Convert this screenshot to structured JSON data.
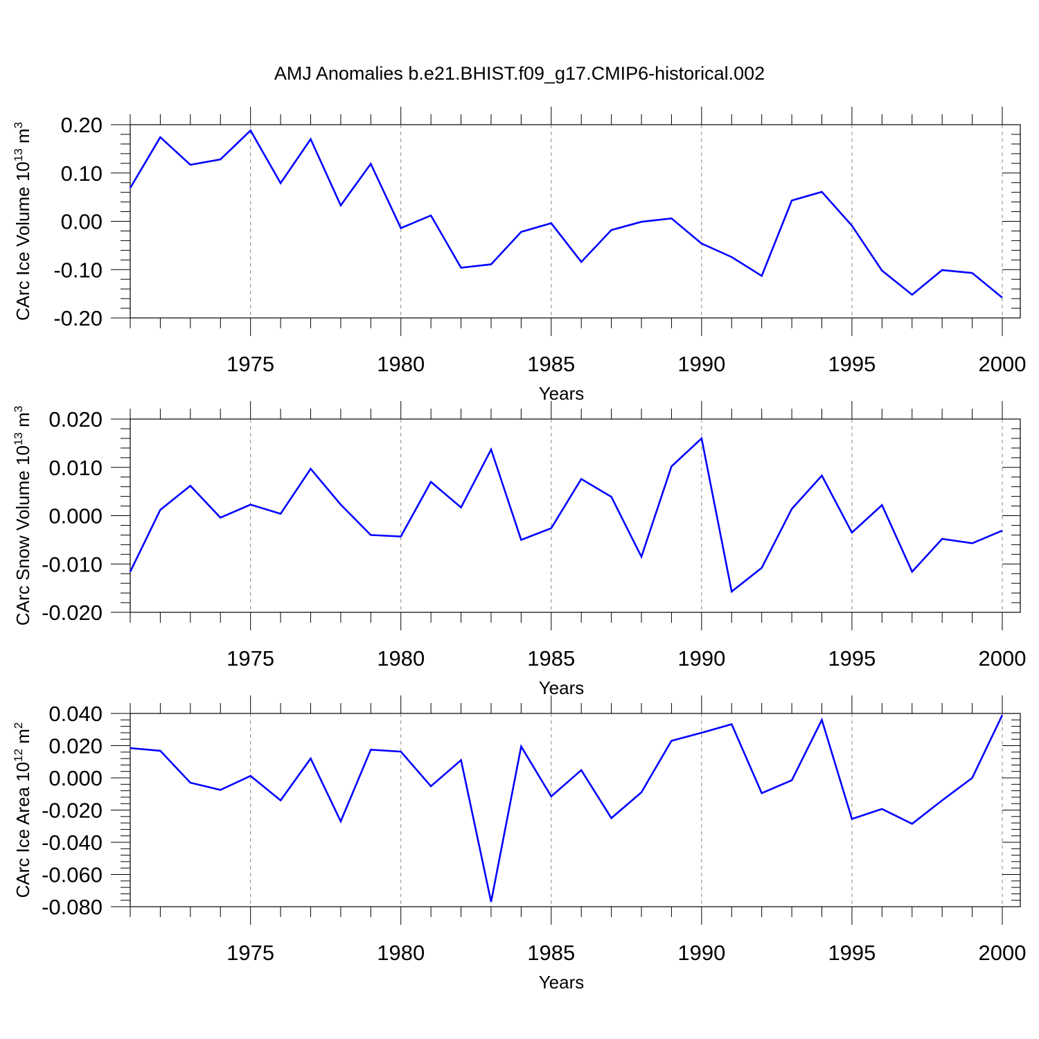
{
  "title": "AMJ Anomalies b.e21.BHIST.f09_g17.CMIP6-historical.002",
  "chart_data": [
    {
      "type": "line",
      "ylabel_main": "CArc Ice Volume 10",
      "ylabel_exp": "13",
      "ylabel_unit": " m",
      "ylabel_unit_exp": "3",
      "xlabel": "Years",
      "xlim": [
        1971,
        2000
      ],
      "ylim": [
        -0.2,
        0.2
      ],
      "yticks": [
        0.2,
        0.1,
        0.0,
        -0.1,
        -0.2
      ],
      "ytick_labels": [
        "0.20",
        "0.10",
        "0.00",
        "-0.10",
        "-0.20"
      ],
      "xticks": [
        1975,
        1980,
        1985,
        1990,
        1995,
        2000
      ],
      "xtick_labels": [
        "1975",
        "1980",
        "1985",
        "1990",
        "1995",
        "2000"
      ],
      "color": "#0000ff",
      "series": [
        {
          "x": [
            1971,
            1972,
            1973,
            1974,
            1975,
            1976,
            1977,
            1978,
            1979,
            1980,
            1981,
            1982,
            1983,
            1984,
            1985,
            1986,
            1987,
            1988,
            1989,
            1990,
            1991,
            1992,
            1993,
            1994,
            1995,
            1996,
            1997,
            1998,
            1999,
            2000
          ],
          "values": [
            0.069,
            0.174,
            0.117,
            0.128,
            0.188,
            0.079,
            0.17,
            0.033,
            0.119,
            -0.014,
            0.012,
            -0.096,
            -0.089,
            -0.022,
            -0.004,
            -0.084,
            -0.018,
            -0.001,
            0.006,
            -0.046,
            -0.074,
            -0.113,
            0.043,
            0.061,
            -0.009,
            -0.102,
            -0.152,
            -0.101,
            -0.107,
            -0.158
          ]
        }
      ]
    },
    {
      "type": "line",
      "ylabel_main": "CArc Snow Volume 10",
      "ylabel_exp": "13",
      "ylabel_unit": " m",
      "ylabel_unit_exp": "3",
      "xlabel": "Years",
      "xlim": [
        1971,
        2000
      ],
      "ylim": [
        -0.02,
        0.02
      ],
      "yticks": [
        0.02,
        0.01,
        0.0,
        -0.01,
        -0.02
      ],
      "ytick_labels": [
        "0.020",
        "0.010",
        "0.000",
        "-0.010",
        "-0.020"
      ],
      "xticks": [
        1975,
        1980,
        1985,
        1990,
        1995,
        2000
      ],
      "xtick_labels": [
        "1975",
        "1980",
        "1985",
        "1990",
        "1995",
        "2000"
      ],
      "color": "#0000ff",
      "series": [
        {
          "x": [
            1971,
            1972,
            1973,
            1974,
            1975,
            1976,
            1977,
            1978,
            1979,
            1980,
            1981,
            1982,
            1983,
            1984,
            1985,
            1986,
            1987,
            1988,
            1989,
            1990,
            1991,
            1992,
            1993,
            1994,
            1995,
            1996,
            1997,
            1998,
            1999,
            2000
          ],
          "values": [
            -0.0116,
            0.0012,
            0.0062,
            -0.0004,
            0.0023,
            0.0004,
            0.0097,
            0.0023,
            -0.004,
            -0.0043,
            0.007,
            0.0017,
            0.0137,
            -0.005,
            -0.0026,
            0.0076,
            0.0039,
            -0.0085,
            0.0102,
            0.016,
            -0.0157,
            -0.0108,
            0.0014,
            0.0083,
            -0.0035,
            0.0022,
            -0.0116,
            -0.0048,
            -0.0057,
            -0.0031
          ]
        }
      ]
    },
    {
      "type": "line",
      "ylabel_main": "CArc Ice Area 10",
      "ylabel_exp": "12",
      "ylabel_unit": " m",
      "ylabel_unit_exp": "2",
      "xlabel": "Years",
      "xlim": [
        1971,
        2000
      ],
      "ylim": [
        -0.08,
        0.04
      ],
      "yticks": [
        0.04,
        0.02,
        0.0,
        -0.02,
        -0.04,
        -0.06,
        -0.08
      ],
      "ytick_labels": [
        "0.040",
        "0.020",
        "0.000",
        "-0.020",
        "-0.040",
        "-0.060",
        "-0.080"
      ],
      "xticks": [
        1975,
        1980,
        1985,
        1990,
        1995,
        2000
      ],
      "xtick_labels": [
        "1975",
        "1980",
        "1985",
        "1990",
        "1995",
        "2000"
      ],
      "color": "#0000ff",
      "series": [
        {
          "x": [
            1971,
            1972,
            1973,
            1974,
            1975,
            1976,
            1977,
            1978,
            1979,
            1980,
            1981,
            1982,
            1983,
            1984,
            1985,
            1986,
            1987,
            1988,
            1989,
            1990,
            1991,
            1992,
            1993,
            1994,
            1995,
            1996,
            1997,
            1998,
            1999,
            2000
          ],
          "values": [
            0.0185,
            0.0168,
            -0.003,
            -0.0075,
            0.0012,
            -0.014,
            0.012,
            -0.027,
            0.0175,
            0.0163,
            -0.0052,
            0.011,
            -0.077,
            0.0195,
            -0.0115,
            0.0048,
            -0.025,
            -0.009,
            0.023,
            0.028,
            0.0333,
            -0.0095,
            -0.0015,
            0.036,
            -0.0255,
            -0.0193,
            -0.0285,
            -0.014,
            0.0,
            0.039
          ]
        }
      ]
    }
  ]
}
